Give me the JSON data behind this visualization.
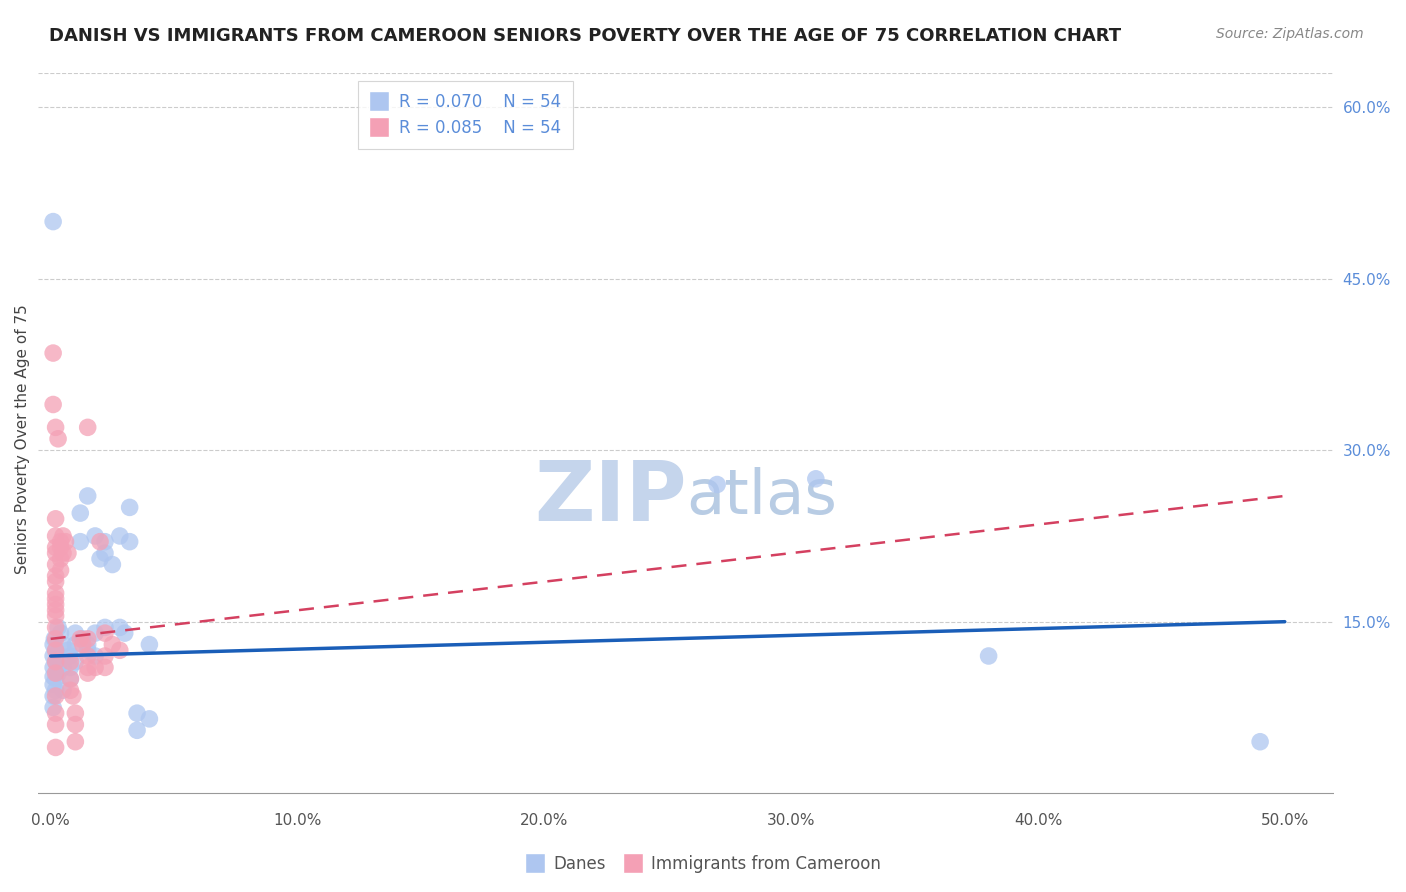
{
  "title": "DANISH VS IMMIGRANTS FROM CAMEROON SENIORS POVERTY OVER THE AGE OF 75 CORRELATION CHART",
  "source": "Source: ZipAtlas.com",
  "ylabel": "Seniors Poverty Over the Age of 75",
  "xlim": [
    -0.5,
    52
  ],
  "ylim": [
    -1.0,
    63
  ],
  "danes_R": 0.07,
  "danes_N": 54,
  "cameroon_R": 0.085,
  "cameroon_N": 54,
  "legend_label_danes": "Danes",
  "legend_label_cameroon": "Immigrants from Cameroon",
  "danes_color": "#aec6f0",
  "cameroon_color": "#f4a0b5",
  "trendline_danes_color": "#1a5eb8",
  "trendline_cameroon_color": "#d44060",
  "ytick_positions": [
    15.0,
    30.0,
    45.0,
    60.0
  ],
  "ytick_labels": [
    "15.0%",
    "30.0%",
    "45.0%",
    "60.0%"
  ],
  "xtick_positions": [
    0.0,
    10.0,
    20.0,
    30.0,
    40.0,
    50.0
  ],
  "xtick_labels": [
    "0.0%",
    "10.0%",
    "20.0%",
    "30.0%",
    "40.0%",
    "50.0%"
  ],
  "danes_scatter": [
    [
      0.1,
      50.0
    ],
    [
      0.1,
      13.0
    ],
    [
      0.1,
      12.0
    ],
    [
      0.1,
      11.0
    ],
    [
      0.1,
      10.2
    ],
    [
      0.1,
      9.5
    ],
    [
      0.1,
      8.5
    ],
    [
      0.1,
      7.5
    ],
    [
      0.15,
      13.5
    ],
    [
      0.2,
      12.5
    ],
    [
      0.2,
      11.5
    ],
    [
      0.2,
      10.0
    ],
    [
      0.2,
      9.0
    ],
    [
      0.3,
      14.5
    ],
    [
      0.3,
      11.0
    ],
    [
      0.3,
      10.5
    ],
    [
      0.4,
      14.0
    ],
    [
      0.5,
      13.0
    ],
    [
      0.5,
      11.0
    ],
    [
      0.5,
      9.0
    ],
    [
      0.7,
      12.5
    ],
    [
      0.8,
      12.0
    ],
    [
      0.8,
      11.0
    ],
    [
      0.8,
      10.0
    ],
    [
      1.0,
      14.0
    ],
    [
      1.0,
      13.0
    ],
    [
      1.0,
      11.5
    ],
    [
      1.2,
      24.5
    ],
    [
      1.2,
      22.0
    ],
    [
      1.3,
      13.5
    ],
    [
      1.5,
      26.0
    ],
    [
      1.5,
      13.0
    ],
    [
      1.5,
      12.5
    ],
    [
      1.8,
      22.5
    ],
    [
      1.8,
      14.0
    ],
    [
      1.8,
      12.0
    ],
    [
      2.0,
      20.5
    ],
    [
      2.2,
      22.0
    ],
    [
      2.2,
      21.0
    ],
    [
      2.2,
      14.5
    ],
    [
      2.5,
      20.0
    ],
    [
      2.8,
      22.5
    ],
    [
      2.8,
      14.5
    ],
    [
      3.0,
      14.0
    ],
    [
      3.2,
      25.0
    ],
    [
      3.2,
      22.0
    ],
    [
      3.5,
      7.0
    ],
    [
      3.5,
      5.5
    ],
    [
      4.0,
      13.0
    ],
    [
      4.0,
      6.5
    ],
    [
      27.0,
      27.0
    ],
    [
      31.0,
      27.5
    ],
    [
      38.0,
      12.0
    ],
    [
      49.0,
      4.5
    ]
  ],
  "cameroon_scatter": [
    [
      0.1,
      38.5
    ],
    [
      0.1,
      34.0
    ],
    [
      0.2,
      32.0
    ],
    [
      0.2,
      24.0
    ],
    [
      0.2,
      22.5
    ],
    [
      0.2,
      21.5
    ],
    [
      0.2,
      21.0
    ],
    [
      0.2,
      20.0
    ],
    [
      0.2,
      19.0
    ],
    [
      0.2,
      18.5
    ],
    [
      0.2,
      17.5
    ],
    [
      0.2,
      17.0
    ],
    [
      0.2,
      16.5
    ],
    [
      0.2,
      16.0
    ],
    [
      0.2,
      15.5
    ],
    [
      0.2,
      14.5
    ],
    [
      0.2,
      13.5
    ],
    [
      0.2,
      12.5
    ],
    [
      0.2,
      11.5
    ],
    [
      0.2,
      10.5
    ],
    [
      0.2,
      8.5
    ],
    [
      0.2,
      7.0
    ],
    [
      0.2,
      6.0
    ],
    [
      0.2,
      4.0
    ],
    [
      0.3,
      31.0
    ],
    [
      0.4,
      22.0
    ],
    [
      0.4,
      21.5
    ],
    [
      0.4,
      20.5
    ],
    [
      0.4,
      19.5
    ],
    [
      0.5,
      22.5
    ],
    [
      0.5,
      21.0
    ],
    [
      0.6,
      22.0
    ],
    [
      0.7,
      21.0
    ],
    [
      0.8,
      11.5
    ],
    [
      0.8,
      10.0
    ],
    [
      0.8,
      9.0
    ],
    [
      0.9,
      8.5
    ],
    [
      1.0,
      7.0
    ],
    [
      1.0,
      6.0
    ],
    [
      1.0,
      4.5
    ],
    [
      1.2,
      13.5
    ],
    [
      1.3,
      13.0
    ],
    [
      1.5,
      32.0
    ],
    [
      1.5,
      13.5
    ],
    [
      1.5,
      12.0
    ],
    [
      1.5,
      11.0
    ],
    [
      1.5,
      10.5
    ],
    [
      1.8,
      11.0
    ],
    [
      2.0,
      22.0
    ],
    [
      2.2,
      14.0
    ],
    [
      2.2,
      12.0
    ],
    [
      2.2,
      11.0
    ],
    [
      2.5,
      13.0
    ],
    [
      2.8,
      12.5
    ]
  ],
  "danes_trendline_x": [
    0.0,
    50.0
  ],
  "danes_trendline_y": [
    12.0,
    15.0
  ],
  "cameroon_trendline_x": [
    0.0,
    50.0
  ],
  "cameroon_trendline_y": [
    13.5,
    26.0
  ],
  "background_color": "#ffffff",
  "grid_color": "#cccccc",
  "title_fontsize": 13,
  "source_fontsize": 10,
  "axis_label_fontsize": 11,
  "tick_fontsize": 11,
  "legend_fontsize": 12,
  "watermark_zip_color": "#c5d5ec",
  "watermark_atlas_color": "#b8cce4",
  "watermark_fontsize": 60
}
